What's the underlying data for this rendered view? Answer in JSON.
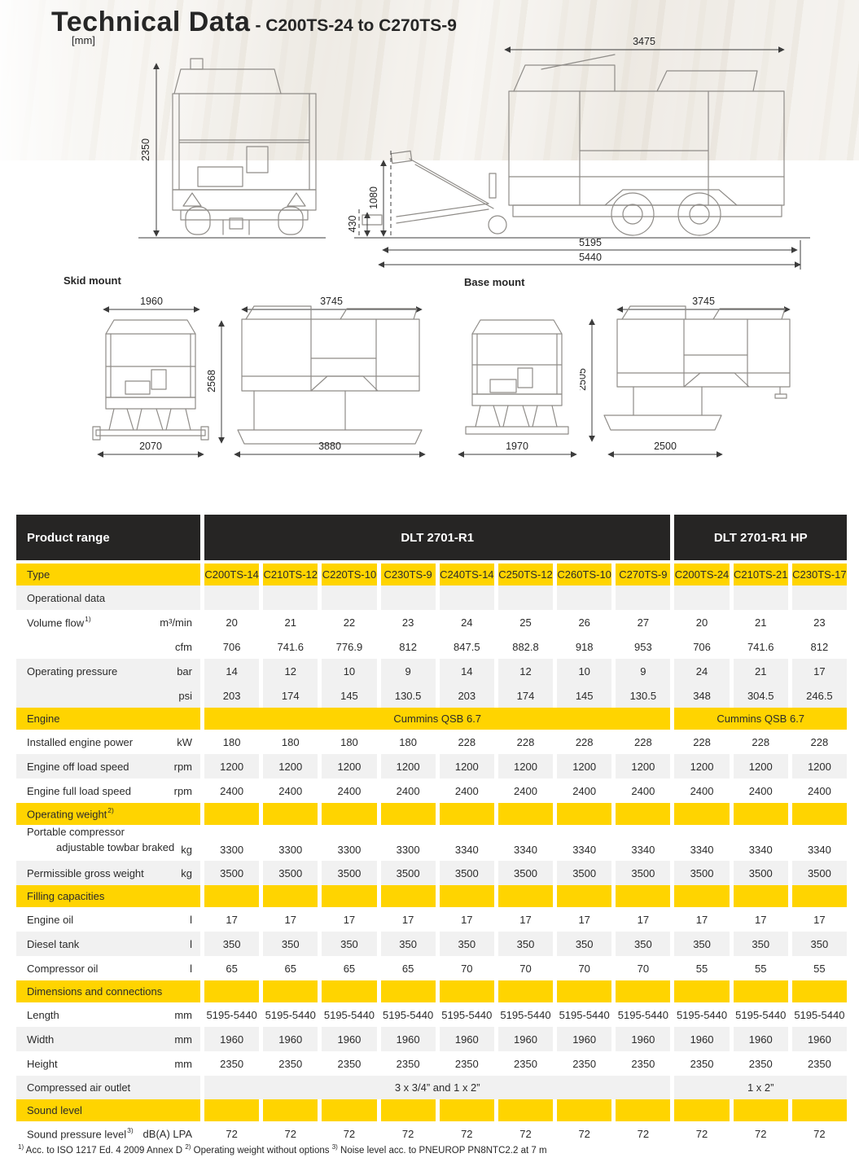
{
  "page": {
    "title": "Technical Data",
    "subtitle": "- C200TS-24 to C270TS-9",
    "unit_note": "[mm]"
  },
  "drawings": {
    "skid_label": "Skid mount",
    "base_label": "Base mount",
    "trailer_rear": {
      "height": "2350"
    },
    "trailer_side": {
      "width_top": "3475",
      "towbar_raised": "1080",
      "towbar_lowered": "430",
      "length_body": "5195",
      "length_total": "5440"
    },
    "skid_front": {
      "width_top": "1960",
      "width_bottom": "2070"
    },
    "skid_side": {
      "height": "2568",
      "width_top": "3745",
      "width_bottom": "3880"
    },
    "base_front": {
      "width_bottom": "1970"
    },
    "base_side": {
      "height": "2505",
      "width_top": "3745",
      "width_bottom": "2500"
    }
  },
  "table": {
    "product_range": "Product range",
    "groups": [
      {
        "label": "DLT 2701-R1",
        "span": 8
      },
      {
        "label": "DLT 2701-R1 HP",
        "span": 3
      }
    ],
    "rows": [
      {
        "kind": "type",
        "label": "Type",
        "values": [
          "C200TS-14",
          "C210TS-12",
          "C220TS-10",
          "C230TS-9",
          "C240TS-14",
          "C250TS-12",
          "C260TS-10",
          "C270TS-9",
          "C200TS-24",
          "C210TS-21",
          "C230TS-17"
        ]
      },
      {
        "kind": "sub",
        "label": "Operational data"
      },
      {
        "kind": "row",
        "stripe": "w",
        "label": "Volume flow",
        "sup": "1)",
        "unit": "m³/min",
        "values": [
          "20",
          "21",
          "22",
          "23",
          "24",
          "25",
          "26",
          "27",
          "20",
          "21",
          "23"
        ]
      },
      {
        "kind": "row",
        "stripe": "w",
        "label": "",
        "unit": "cfm",
        "values": [
          "706",
          "741.6",
          "776.9",
          "812",
          "847.5",
          "882.8",
          "918",
          "953",
          "706",
          "741.6",
          "812"
        ]
      },
      {
        "kind": "row",
        "stripe": "g",
        "label": "Operating pressure",
        "unit": "bar",
        "values": [
          "14",
          "12",
          "10",
          "9",
          "14",
          "12",
          "10",
          "9",
          "24",
          "21",
          "17"
        ]
      },
      {
        "kind": "row",
        "stripe": "g",
        "label": "",
        "unit": "psi",
        "values": [
          "203",
          "174",
          "145",
          "130.5",
          "203",
          "174",
          "145",
          "130.5",
          "348",
          "304.5",
          "246.5"
        ]
      },
      {
        "kind": "secspan",
        "label": "Engine",
        "spans": [
          {
            "text": "Cummins QSB 6.7",
            "span": 8
          },
          {
            "text": "Cummins QSB 6.7",
            "span": 3
          }
        ]
      },
      {
        "kind": "row",
        "stripe": "w",
        "label": "Installed engine power",
        "unit": "kW",
        "values": [
          "180",
          "180",
          "180",
          "180",
          "228",
          "228",
          "228",
          "228",
          "228",
          "228",
          "228"
        ]
      },
      {
        "kind": "row",
        "stripe": "g",
        "label": "Engine off load speed",
        "unit": "rpm",
        "values": [
          "1200",
          "1200",
          "1200",
          "1200",
          "1200",
          "1200",
          "1200",
          "1200",
          "1200",
          "1200",
          "1200"
        ]
      },
      {
        "kind": "row",
        "stripe": "w",
        "label": "Engine full load speed",
        "unit": "rpm",
        "values": [
          "2400",
          "2400",
          "2400",
          "2400",
          "2400",
          "2400",
          "2400",
          "2400",
          "2400",
          "2400",
          "2400"
        ]
      },
      {
        "kind": "sec",
        "label": "Operating weight",
        "sup": "2)"
      },
      {
        "kind": "row",
        "stripe": "w",
        "tall": true,
        "label": "Portable compressor",
        "label2": "adjustable towbar braked",
        "unit": "kg",
        "values": [
          "3300",
          "3300",
          "3300",
          "3300",
          "3340",
          "3340",
          "3340",
          "3340",
          "3340",
          "3340",
          "3340"
        ]
      },
      {
        "kind": "row",
        "stripe": "g",
        "label": "Permissible gross weight",
        "unit": "kg",
        "values": [
          "3500",
          "3500",
          "3500",
          "3500",
          "3500",
          "3500",
          "3500",
          "3500",
          "3500",
          "3500",
          "3500"
        ]
      },
      {
        "kind": "sec",
        "label": "Filling capacities"
      },
      {
        "kind": "row",
        "stripe": "w",
        "label": "Engine oil",
        "unit": "l",
        "values": [
          "17",
          "17",
          "17",
          "17",
          "17",
          "17",
          "17",
          "17",
          "17",
          "17",
          "17"
        ]
      },
      {
        "kind": "row",
        "stripe": "g",
        "label": "Diesel tank",
        "unit": "l",
        "values": [
          "350",
          "350",
          "350",
          "350",
          "350",
          "350",
          "350",
          "350",
          "350",
          "350",
          "350"
        ]
      },
      {
        "kind": "row",
        "stripe": "w",
        "label": "Compressor oil",
        "unit": "l",
        "values": [
          "65",
          "65",
          "65",
          "65",
          "70",
          "70",
          "70",
          "70",
          "55",
          "55",
          "55"
        ]
      },
      {
        "kind": "sec",
        "label": "Dimensions and connections"
      },
      {
        "kind": "row",
        "stripe": "w",
        "label": "Length",
        "unit": "mm",
        "values": [
          "5195-5440",
          "5195-5440",
          "5195-5440",
          "5195-5440",
          "5195-5440",
          "5195-5440",
          "5195-5440",
          "5195-5440",
          "5195-5440",
          "5195-5440",
          "5195-5440"
        ]
      },
      {
        "kind": "row",
        "stripe": "g",
        "label": "Width",
        "unit": "mm",
        "values": [
          "1960",
          "1960",
          "1960",
          "1960",
          "1960",
          "1960",
          "1960",
          "1960",
          "1960",
          "1960",
          "1960"
        ]
      },
      {
        "kind": "row",
        "stripe": "w",
        "label": "Height",
        "unit": "mm",
        "values": [
          "2350",
          "2350",
          "2350",
          "2350",
          "2350",
          "2350",
          "2350",
          "2350",
          "2350",
          "2350",
          "2350"
        ]
      },
      {
        "kind": "grayspan",
        "label": "Compressed air outlet",
        "spans": [
          {
            "text": "3 x 3/4” and 1 x 2”",
            "span": 8
          },
          {
            "text": "1 x 2”",
            "span": 3
          }
        ]
      },
      {
        "kind": "sec",
        "label": "Sound level"
      },
      {
        "kind": "row",
        "stripe": "w",
        "label": "Sound pressure level",
        "sup": "3)",
        "unit": "dB(A) LPA",
        "values": [
          "72",
          "72",
          "72",
          "72",
          "72",
          "72",
          "72",
          "72",
          "72",
          "72",
          "72"
        ]
      }
    ]
  },
  "footnotes": [
    {
      "sup": "1)",
      "text": "Acc. to ISO 1217 Ed. 4 2009 Annex D"
    },
    {
      "sup": "2)",
      "text": "Operating weight without options"
    },
    {
      "sup": "3)",
      "text": "Noise level acc. to PNEUROP PN8NTC2.2 at 7 m"
    }
  ],
  "colors": {
    "accent_yellow": "#ffd400",
    "header_dark": "#262524",
    "row_gray": "#f1f1f1"
  }
}
